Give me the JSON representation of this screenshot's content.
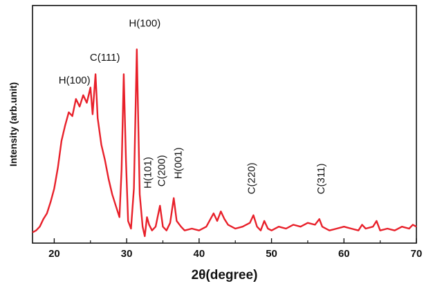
{
  "chart_data": {
    "type": "line",
    "title": "",
    "xlabel": "2θ(degree)",
    "ylabel": "Intensity (arb.unit)",
    "xlim": [
      17,
      70
    ],
    "ylim": [
      0,
      100
    ],
    "grid": false,
    "legend": "none",
    "series_color": "#e8202a",
    "x_ticks": [
      20,
      30,
      40,
      50,
      60,
      70
    ],
    "y_ticks": [],
    "series": [
      {
        "x": [
          17.0,
          17.5,
          18.0,
          18.5,
          19.0,
          19.5,
          20.0,
          20.5,
          21.0,
          21.5,
          22.0,
          22.5,
          23.0,
          23.5,
          24.0,
          24.5,
          25.0,
          25.3,
          25.7,
          26.0,
          26.5,
          27.0,
          27.5,
          28.0,
          28.5,
          29.0,
          29.3,
          29.6,
          29.9,
          30.2,
          30.6,
          31.0,
          31.4,
          31.8,
          32.2,
          32.5,
          32.8,
          33.1,
          33.5,
          34.0,
          34.6,
          35.0,
          35.5,
          36.0,
          36.5,
          36.9,
          37.5,
          38.0,
          39.0,
          40.0,
          41.0,
          42.0,
          42.5,
          43.0,
          43.5,
          44.0,
          45.0,
          46.0,
          47.0,
          47.5,
          48.0,
          48.5,
          49.0,
          49.5,
          50.0,
          51.0,
          52.0,
          53.0,
          54.0,
          55.0,
          56.0,
          56.6,
          57.0,
          57.5,
          58.0,
          59.0,
          60.0,
          61.0,
          62.0,
          62.5,
          63.0,
          64.0,
          64.5,
          65.0,
          66.0,
          67.0,
          68.0,
          69.0,
          69.5,
          70.0
        ],
        "y": [
          2,
          3,
          5,
          9,
          12,
          18,
          25,
          36,
          50,
          58,
          65,
          63,
          72,
          68,
          74,
          70,
          78,
          64,
          85,
          62,
          48,
          40,
          30,
          22,
          16,
          10,
          35,
          85,
          40,
          8,
          4,
          25,
          98,
          22,
          5,
          0,
          10,
          6,
          3,
          5,
          16,
          5,
          3,
          7,
          20,
          8,
          5,
          3,
          4,
          3,
          5,
          12,
          8,
          13,
          9,
          6,
          4,
          5,
          7,
          11,
          5,
          3,
          8,
          4,
          3,
          5,
          4,
          6,
          5,
          7,
          6,
          9,
          5,
          4,
          3,
          4,
          5,
          4,
          3,
          6,
          4,
          5,
          8,
          3,
          4,
          3,
          5,
          4,
          6,
          5
        ]
      }
    ],
    "annotations": [
      {
        "text": "H(100)",
        "x": 22.8,
        "y": 80,
        "rotated": false
      },
      {
        "text": "C(111)",
        "x": 27.0,
        "y": 92,
        "rotated": false
      },
      {
        "text": "H(100)",
        "x": 32.5,
        "y": 110,
        "rotated": false
      },
      {
        "text": "H(101)",
        "x": 33.4,
        "y": 25,
        "rotated": true
      },
      {
        "text": "C(200)",
        "x": 35.3,
        "y": 26,
        "rotated": true
      },
      {
        "text": "H(001)",
        "x": 37.6,
        "y": 30,
        "rotated": true
      },
      {
        "text": "C(220)",
        "x": 47.7,
        "y": 22,
        "rotated": true
      },
      {
        "text": "C(311)",
        "x": 57.3,
        "y": 22,
        "rotated": true
      }
    ]
  }
}
